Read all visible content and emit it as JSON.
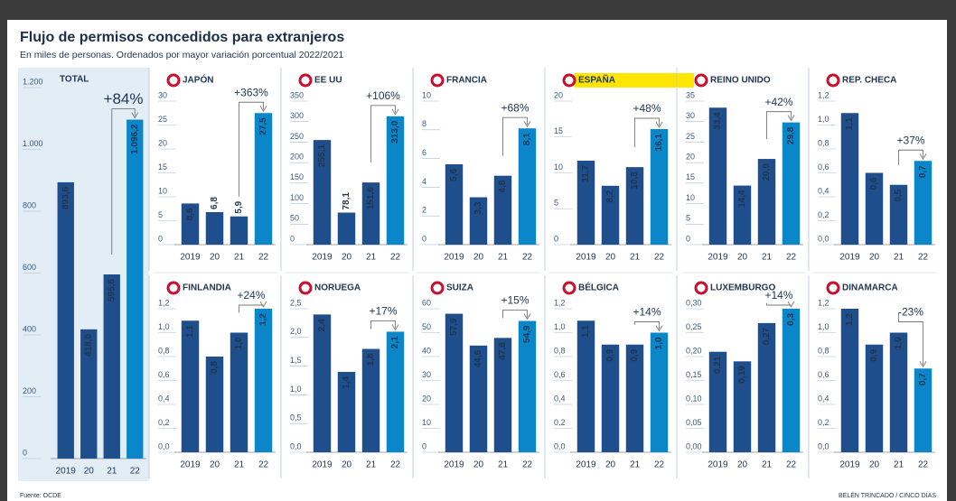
{
  "title": "Flujo de permisos concedidos para extranjeros",
  "subtitle": "En miles de personas. Ordenados por mayor variación porcentual 2022/2021",
  "source": "Fuente: OCDE",
  "credit": "BELÉN TRINCADO / CINCO DÍAS",
  "chart_data": [
    {
      "type": "bar",
      "title": "TOTAL",
      "change": "+84%",
      "change_color": "#3aaa35",
      "colors": [
        "#1f4e8c",
        "#1f4e8c",
        "#1f4e8c",
        "#0b86c8"
      ],
      "categories": [
        "2019",
        "20",
        "21",
        "22"
      ],
      "values": [
        893.6,
        418.0,
        595.6,
        1096.2
      ],
      "value_labels": [
        "893,6",
        "418,0",
        "595,6",
        "1.096,2"
      ],
      "ylim": [
        0,
        1200
      ],
      "yticks": [
        0,
        200,
        400,
        600,
        800,
        {
          "value": 1000,
          "label": "1.000"
        },
        {
          "value": 1200,
          "label": "1.200"
        }
      ]
    },
    {
      "type": "bar",
      "title": "JAPÓN",
      "change": "+363%",
      "change_color": "#3aaa35",
      "colors": [
        "#1f4e8c",
        "#1f4e8c",
        "#1f4e8c",
        "#0b86c8"
      ],
      "categories": [
        "2019",
        "20",
        "21",
        "22"
      ],
      "values": [
        8.6,
        6.8,
        5.9,
        27.5
      ],
      "value_labels": [
        "8,6",
        "6,8",
        "5,9",
        "27,5"
      ],
      "ylim": [
        0,
        30
      ],
      "yticks": [
        0,
        5,
        10,
        15,
        20,
        25,
        30
      ]
    },
    {
      "type": "bar",
      "title": "EE UU",
      "change": "+106%",
      "change_color": "#3aaa35",
      "colors": [
        "#1f4e8c",
        "#1f4e8c",
        "#1f4e8c",
        "#0b86c8"
      ],
      "categories": [
        "2019",
        "20",
        "21",
        "22"
      ],
      "values": [
        255.1,
        78.1,
        151.6,
        313.0
      ],
      "value_labels": [
        "255,1",
        "78,1",
        "151,6",
        "313,0"
      ],
      "ylim": [
        0,
        350
      ],
      "yticks": [
        0,
        50,
        100,
        150,
        200,
        250,
        300,
        350
      ]
    },
    {
      "type": "bar",
      "title": "FRANCIA",
      "change": "+68%",
      "change_color": "#3aaa35",
      "colors": [
        "#1f4e8c",
        "#1f4e8c",
        "#1f4e8c",
        "#0b86c8"
      ],
      "categories": [
        "2019",
        "20",
        "21",
        "22"
      ],
      "values": [
        5.6,
        3.3,
        4.8,
        8.1
      ],
      "value_labels": [
        "5,6",
        "3,3",
        "4,8",
        "8,1"
      ],
      "ylim": [
        0,
        10
      ],
      "yticks": [
        0,
        2,
        4,
        6,
        8,
        10
      ]
    },
    {
      "type": "bar",
      "title": "ESPAÑA",
      "highlight": "#ffe600",
      "change": "+48%",
      "change_color": "#3aaa35",
      "colors": [
        "#1f4e8c",
        "#1f4e8c",
        "#1f4e8c",
        "#0b86c8"
      ],
      "categories": [
        "2019",
        "20",
        "21",
        "22"
      ],
      "values": [
        11.7,
        8.2,
        10.8,
        16.1
      ],
      "value_labels": [
        "11,7",
        "8,2",
        "10,8",
        "16,1"
      ],
      "ylim": [
        0,
        20
      ],
      "yticks": [
        0,
        5,
        10,
        15,
        20
      ]
    },
    {
      "type": "bar",
      "title": "REINO UNIDO",
      "change": "+42%",
      "change_color": "#3aaa35",
      "colors": [
        "#1f4e8c",
        "#1f4e8c",
        "#1f4e8c",
        "#0b86c8"
      ],
      "categories": [
        "2019",
        "20",
        "21",
        "22"
      ],
      "values": [
        33.4,
        14.4,
        20.9,
        29.8
      ],
      "value_labels": [
        "33,4",
        "14,4",
        "20,9",
        "29,8"
      ],
      "ylim": [
        0,
        35
      ],
      "yticks": [
        0,
        5,
        10,
        15,
        20,
        25,
        30,
        35
      ]
    },
    {
      "type": "bar",
      "title": "REP. CHECA",
      "change": "+37%",
      "change_color": "#3aaa35",
      "colors": [
        "#1f4e8c",
        "#1f4e8c",
        "#1f4e8c",
        "#0b86c8"
      ],
      "categories": [
        "2019",
        "20",
        "21",
        "22"
      ],
      "values": [
        1.1,
        0.6,
        0.5,
        0.7
      ],
      "value_labels": [
        "1,1",
        "0,6",
        "0,5",
        "0,7"
      ],
      "ylim": [
        0,
        1.2
      ],
      "yticks": [
        {
          "value": 0,
          "label": "0,0"
        },
        {
          "value": 0.2,
          "label": "0,2"
        },
        {
          "value": 0.4,
          "label": "0,4"
        },
        {
          "value": 0.6,
          "label": "0,6"
        },
        {
          "value": 0.8,
          "label": "0,8"
        },
        {
          "value": 1.0,
          "label": "1,0"
        },
        {
          "value": 1.2,
          "label": "1,2"
        }
      ]
    },
    {
      "type": "bar",
      "title": "FINLANDIA",
      "change": "+24%",
      "change_color": "#3aaa35",
      "colors": [
        "#1f4e8c",
        "#1f4e8c",
        "#1f4e8c",
        "#0b86c8"
      ],
      "categories": [
        "2019",
        "20",
        "21",
        "22"
      ],
      "values": [
        1.1,
        0.8,
        1.0,
        1.2
      ],
      "value_labels": [
        "1,1",
        "0,8",
        "1,0",
        "1,2"
      ],
      "ylim": [
        0,
        1.2
      ],
      "yticks": [
        {
          "value": 0,
          "label": "0,0"
        },
        {
          "value": 0.2,
          "label": "0,2"
        },
        {
          "value": 0.4,
          "label": "0,4"
        },
        {
          "value": 0.6,
          "label": "0,6"
        },
        {
          "value": 0.8,
          "label": "0,8"
        },
        {
          "value": 1.0,
          "label": "1,0"
        },
        {
          "value": 1.2,
          "label": "1,2"
        }
      ]
    },
    {
      "type": "bar",
      "title": "NORUEGA",
      "change": "+17%",
      "change_color": "#3aaa35",
      "colors": [
        "#1f4e8c",
        "#1f4e8c",
        "#1f4e8c",
        "#0b86c8"
      ],
      "categories": [
        "2019",
        "20",
        "21",
        "22"
      ],
      "values": [
        2.4,
        1.4,
        1.8,
        2.1
      ],
      "value_labels": [
        "2,4",
        "1,4",
        "1,8",
        "2,1"
      ],
      "ylim": [
        0,
        2.5
      ],
      "yticks": [
        {
          "value": 0,
          "label": "0,0"
        },
        {
          "value": 0.5,
          "label": "0,5"
        },
        {
          "value": 1.0,
          "label": "1,0"
        },
        {
          "value": 1.5,
          "label": "1,5"
        },
        {
          "value": 2.0,
          "label": "2,0"
        },
        {
          "value": 2.5,
          "label": "2,5"
        }
      ]
    },
    {
      "type": "bar",
      "title": "SUIZA",
      "change": "+15%",
      "change_color": "#3aaa35",
      "colors": [
        "#1f4e8c",
        "#1f4e8c",
        "#1f4e8c",
        "#0b86c8"
      ],
      "categories": [
        "2019",
        "20",
        "21",
        "22"
      ],
      "values": [
        57.9,
        44.6,
        47.8,
        54.9
      ],
      "value_labels": [
        "57,9",
        "44,6",
        "47,8",
        "54,9"
      ],
      "ylim": [
        0,
        60
      ],
      "yticks": [
        0,
        10,
        20,
        30,
        40,
        50,
        60
      ]
    },
    {
      "type": "bar",
      "title": "BÉLGICA",
      "change": "+14%",
      "change_color": "#3aaa35",
      "colors": [
        "#1f4e8c",
        "#1f4e8c",
        "#1f4e8c",
        "#0b86c8"
      ],
      "categories": [
        "2019",
        "20",
        "21",
        "22"
      ],
      "values": [
        1.1,
        0.9,
        0.9,
        1.0
      ],
      "value_labels": [
        "1,1",
        "0,9",
        "0,9",
        "1,0"
      ],
      "ylim": [
        0,
        1.2
      ],
      "yticks": [
        {
          "value": 0,
          "label": "0,0"
        },
        {
          "value": 0.2,
          "label": "0,2"
        },
        {
          "value": 0.4,
          "label": "0,4"
        },
        {
          "value": 0.6,
          "label": "0,6"
        },
        {
          "value": 0.8,
          "label": "0,8"
        },
        {
          "value": 1.0,
          "label": "1,0"
        },
        {
          "value": 1.2,
          "label": "1,2"
        }
      ]
    },
    {
      "type": "bar",
      "title": "LUXEMBURGO",
      "change": "+14%",
      "change_color": "#3aaa35",
      "colors": [
        "#1f4e8c",
        "#1f4e8c",
        "#1f4e8c",
        "#0b86c8"
      ],
      "categories": [
        "2019",
        "20",
        "21",
        "22"
      ],
      "values": [
        0.21,
        0.19,
        0.27,
        0.3
      ],
      "value_labels": [
        "0,21",
        "0,19",
        "0,27",
        "0,3"
      ],
      "ylim": [
        0,
        0.3
      ],
      "yticks": [
        {
          "value": 0,
          "label": "0,00"
        },
        {
          "value": 0.05,
          "label": "0,05"
        },
        {
          "value": 0.1,
          "label": "0,10"
        },
        {
          "value": 0.15,
          "label": "0,15"
        },
        {
          "value": 0.2,
          "label": "0,20"
        },
        {
          "value": 0.25,
          "label": "0,25"
        },
        {
          "value": 0.3,
          "label": "0,30"
        }
      ]
    },
    {
      "type": "bar",
      "title": "DINAMARCA",
      "change": "-23%",
      "change_color": "#e2262b",
      "colors": [
        "#1f4e8c",
        "#1f4e8c",
        "#1f4e8c",
        "#0b86c8"
      ],
      "categories": [
        "2019",
        "20",
        "21",
        "22"
      ],
      "values": [
        1.2,
        0.9,
        1.0,
        0.7
      ],
      "value_labels": [
        "1,2",
        "0,9",
        "1,0",
        "0,7"
      ],
      "ylim": [
        0,
        1.2
      ],
      "yticks": [
        {
          "value": 0,
          "label": "0,0"
        },
        {
          "value": 0.2,
          "label": "0,2"
        },
        {
          "value": 0.4,
          "label": "0,4"
        },
        {
          "value": 0.6,
          "label": "0,6"
        },
        {
          "value": 0.8,
          "label": "0,8"
        },
        {
          "value": 1.0,
          "label": "1,0"
        },
        {
          "value": 1.2,
          "label": "1,2"
        }
      ]
    }
  ]
}
